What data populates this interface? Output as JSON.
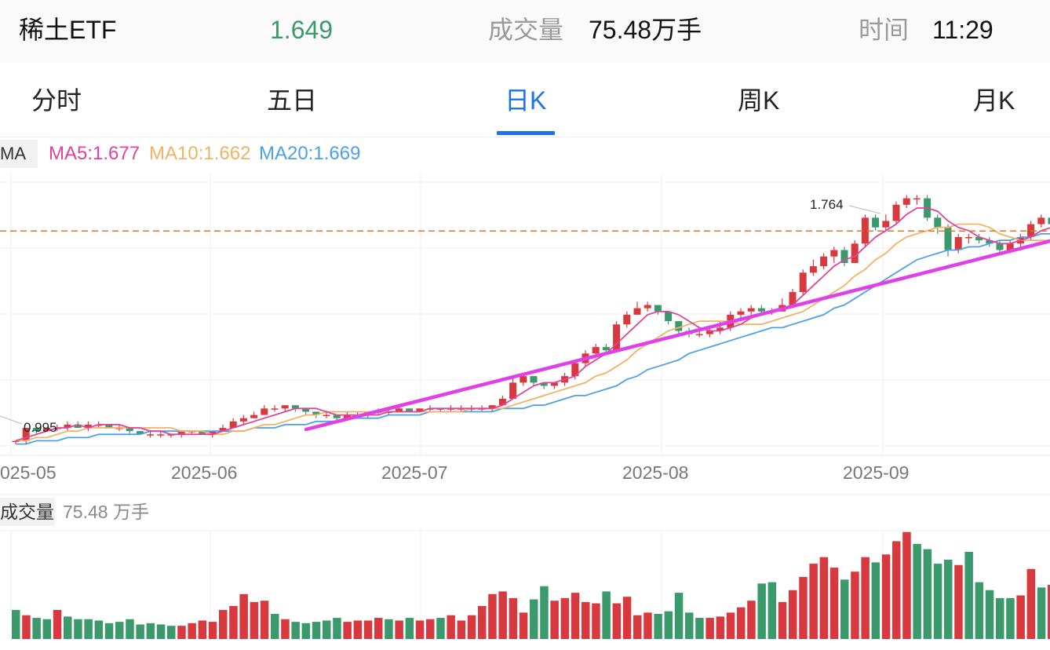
{
  "header": {
    "name": "稀土ETF",
    "price": "1.649",
    "volume_label": "成交量",
    "volume": "75.48万手",
    "time_label": "时间",
    "time": "11:29"
  },
  "tabs": [
    {
      "label": "分时",
      "active": false
    },
    {
      "label": "五日",
      "active": false
    },
    {
      "label": "日K",
      "active": true
    },
    {
      "label": "周K",
      "active": false
    },
    {
      "label": "月K",
      "active": false
    }
  ],
  "ma": {
    "tag": "MA",
    "ma5": "MA5:1.677",
    "ma10": "MA10:1.662",
    "ma20": "MA20:1.669"
  },
  "volume_panel": {
    "tag": "成交量",
    "value": "75.48 万手"
  },
  "colors": {
    "up": "#d8393f",
    "down": "#3a9a6c",
    "ma5": "#e0439a",
    "ma10": "#f0b266",
    "ma20": "#4da0e8",
    "trendline": "#e040e8",
    "price_line": "#e07820",
    "accent": "#1a73e8"
  },
  "chart_data": {
    "type": "candlestick",
    "x_tick_labels": [
      "2025-05",
      "2025-06",
      "2025-07",
      "2025-08",
      "2025-09"
    ],
    "annotations": {
      "high": "1.764",
      "low": "0.995"
    },
    "current_price": 1.649,
    "candles": [
      [
        1.0,
        1.0,
        0.99,
        1.0
      ],
      [
        1.0,
        1.04,
        0.99,
        1.04
      ],
      [
        1.04,
        1.03,
        1.02,
        1.04
      ],
      [
        1.03,
        1.04,
        1.03,
        1.04
      ],
      [
        1.04,
        1.04,
        1.03,
        1.05
      ],
      [
        1.04,
        1.05,
        1.03,
        1.06
      ],
      [
        1.05,
        1.04,
        1.04,
        1.06
      ],
      [
        1.04,
        1.05,
        1.03,
        1.06
      ],
      [
        1.05,
        1.05,
        1.04,
        1.06
      ],
      [
        1.05,
        1.04,
        1.04,
        1.05
      ],
      [
        1.04,
        1.04,
        1.03,
        1.05
      ],
      [
        1.04,
        1.03,
        1.02,
        1.04
      ],
      [
        1.03,
        1.02,
        1.02,
        1.03
      ],
      [
        1.02,
        1.02,
        1.01,
        1.03
      ],
      [
        1.02,
        1.02,
        1.01,
        1.03
      ],
      [
        1.02,
        1.02,
        1.01,
        1.02
      ],
      [
        1.02,
        1.03,
        1.01,
        1.03
      ],
      [
        1.03,
        1.03,
        1.02,
        1.03
      ],
      [
        1.03,
        1.02,
        1.02,
        1.03
      ],
      [
        1.02,
        1.03,
        1.01,
        1.03
      ],
      [
        1.03,
        1.04,
        1.03,
        1.05
      ],
      [
        1.04,
        1.06,
        1.04,
        1.07
      ],
      [
        1.06,
        1.07,
        1.05,
        1.08
      ],
      [
        1.07,
        1.08,
        1.07,
        1.09
      ],
      [
        1.08,
        1.1,
        1.08,
        1.11
      ],
      [
        1.1,
        1.1,
        1.09,
        1.11
      ],
      [
        1.1,
        1.11,
        1.09,
        1.11
      ],
      [
        1.11,
        1.1,
        1.09,
        1.11
      ],
      [
        1.1,
        1.09,
        1.08,
        1.1
      ],
      [
        1.09,
        1.08,
        1.07,
        1.09
      ],
      [
        1.08,
        1.08,
        1.07,
        1.09
      ],
      [
        1.08,
        1.07,
        1.06,
        1.08
      ],
      [
        1.07,
        1.08,
        1.07,
        1.09
      ],
      [
        1.08,
        1.08,
        1.07,
        1.09
      ],
      [
        1.08,
        1.09,
        1.07,
        1.09
      ],
      [
        1.09,
        1.09,
        1.08,
        1.1
      ],
      [
        1.09,
        1.09,
        1.08,
        1.1
      ],
      [
        1.09,
        1.1,
        1.09,
        1.11
      ],
      [
        1.1,
        1.09,
        1.09,
        1.1
      ],
      [
        1.09,
        1.1,
        1.09,
        1.1
      ],
      [
        1.1,
        1.1,
        1.09,
        1.11
      ],
      [
        1.1,
        1.1,
        1.09,
        1.1
      ],
      [
        1.1,
        1.1,
        1.09,
        1.11
      ],
      [
        1.1,
        1.1,
        1.09,
        1.11
      ],
      [
        1.1,
        1.1,
        1.09,
        1.11
      ],
      [
        1.1,
        1.1,
        1.09,
        1.11
      ],
      [
        1.1,
        1.11,
        1.09,
        1.11
      ],
      [
        1.11,
        1.13,
        1.11,
        1.14
      ],
      [
        1.13,
        1.18,
        1.13,
        1.2
      ],
      [
        1.18,
        1.2,
        1.17,
        1.21
      ],
      [
        1.2,
        1.18,
        1.17,
        1.2
      ],
      [
        1.18,
        1.17,
        1.16,
        1.18
      ],
      [
        1.17,
        1.18,
        1.16,
        1.18
      ],
      [
        1.18,
        1.2,
        1.17,
        1.21
      ],
      [
        1.2,
        1.24,
        1.19,
        1.25
      ],
      [
        1.24,
        1.27,
        1.23,
        1.28
      ],
      [
        1.27,
        1.29,
        1.26,
        1.3
      ],
      [
        1.29,
        1.28,
        1.27,
        1.3
      ],
      [
        1.28,
        1.36,
        1.28,
        1.37
      ],
      [
        1.36,
        1.39,
        1.35,
        1.4
      ],
      [
        1.39,
        1.41,
        1.39,
        1.43
      ],
      [
        1.41,
        1.42,
        1.4,
        1.43
      ],
      [
        1.42,
        1.4,
        1.39,
        1.42
      ],
      [
        1.4,
        1.37,
        1.36,
        1.4
      ],
      [
        1.37,
        1.34,
        1.33,
        1.37
      ],
      [
        1.34,
        1.33,
        1.32,
        1.35
      ],
      [
        1.33,
        1.33,
        1.32,
        1.34
      ],
      [
        1.33,
        1.34,
        1.32,
        1.35
      ],
      [
        1.34,
        1.35,
        1.33,
        1.37
      ],
      [
        1.35,
        1.39,
        1.34,
        1.4
      ],
      [
        1.39,
        1.4,
        1.38,
        1.41
      ],
      [
        1.4,
        1.41,
        1.39,
        1.42
      ],
      [
        1.41,
        1.4,
        1.39,
        1.42
      ],
      [
        1.4,
        1.4,
        1.39,
        1.41
      ],
      [
        1.4,
        1.42,
        1.4,
        1.44
      ],
      [
        1.42,
        1.46,
        1.42,
        1.47
      ],
      [
        1.46,
        1.52,
        1.45,
        1.53
      ],
      [
        1.52,
        1.54,
        1.51,
        1.56
      ],
      [
        1.54,
        1.57,
        1.53,
        1.58
      ],
      [
        1.57,
        1.59,
        1.55,
        1.6
      ],
      [
        1.59,
        1.55,
        1.54,
        1.6
      ],
      [
        1.55,
        1.61,
        1.55,
        1.62
      ],
      [
        1.61,
        1.69,
        1.6,
        1.7
      ],
      [
        1.69,
        1.66,
        1.65,
        1.7
      ],
      [
        1.66,
        1.68,
        1.65,
        1.7
      ],
      [
        1.68,
        1.73,
        1.67,
        1.74
      ],
      [
        1.73,
        1.75,
        1.72,
        1.76
      ],
      [
        1.75,
        1.75,
        1.73,
        1.76
      ],
      [
        1.75,
        1.69,
        1.68,
        1.76
      ],
      [
        1.69,
        1.66,
        1.64,
        1.7
      ],
      [
        1.66,
        1.59,
        1.57,
        1.67
      ],
      [
        1.59,
        1.63,
        1.58,
        1.64
      ],
      [
        1.63,
        1.63,
        1.61,
        1.64
      ],
      [
        1.63,
        1.62,
        1.61,
        1.64
      ],
      [
        1.62,
        1.61,
        1.6,
        1.63
      ],
      [
        1.61,
        1.59,
        1.58,
        1.62
      ],
      [
        1.59,
        1.61,
        1.58,
        1.62
      ],
      [
        1.61,
        1.63,
        1.6,
        1.64
      ],
      [
        1.63,
        1.67,
        1.62,
        1.68
      ],
      [
        1.67,
        1.69,
        1.66,
        1.7
      ],
      [
        1.69,
        1.67,
        1.66,
        1.7
      ],
      [
        1.67,
        1.68,
        1.66,
        1.69
      ],
      [
        1.68,
        1.69,
        1.66,
        1.7
      ],
      [
        1.69,
        1.67,
        1.65,
        1.7
      ],
      [
        1.67,
        1.65,
        1.64,
        1.68
      ]
    ],
    "ma5": [
      1.0,
      1.01,
      1.02,
      1.03,
      1.04,
      1.04,
      1.05,
      1.04,
      1.05,
      1.05,
      1.05,
      1.04,
      1.04,
      1.03,
      1.03,
      1.02,
      1.02,
      1.02,
      1.02,
      1.02,
      1.03,
      1.04,
      1.05,
      1.06,
      1.07,
      1.08,
      1.09,
      1.1,
      1.1,
      1.1,
      1.09,
      1.08,
      1.08,
      1.08,
      1.08,
      1.08,
      1.09,
      1.09,
      1.09,
      1.09,
      1.1,
      1.1,
      1.1,
      1.1,
      1.1,
      1.1,
      1.1,
      1.11,
      1.13,
      1.15,
      1.17,
      1.18,
      1.18,
      1.19,
      1.2,
      1.23,
      1.25,
      1.27,
      1.3,
      1.33,
      1.36,
      1.39,
      1.4,
      1.4,
      1.39,
      1.37,
      1.35,
      1.34,
      1.34,
      1.35,
      1.36,
      1.38,
      1.39,
      1.4,
      1.41,
      1.42,
      1.45,
      1.48,
      1.51,
      1.54,
      1.56,
      1.57,
      1.6,
      1.63,
      1.65,
      1.67,
      1.7,
      1.72,
      1.72,
      1.71,
      1.68,
      1.66,
      1.65,
      1.63,
      1.62,
      1.61,
      1.61,
      1.62,
      1.63,
      1.65,
      1.66,
      1.67,
      1.68,
      1.68,
      1.67
    ],
    "ma10": [
      1.0,
      1.0,
      1.01,
      1.01,
      1.02,
      1.03,
      1.03,
      1.04,
      1.04,
      1.04,
      1.04,
      1.04,
      1.04,
      1.04,
      1.04,
      1.04,
      1.03,
      1.03,
      1.03,
      1.02,
      1.02,
      1.03,
      1.03,
      1.04,
      1.05,
      1.05,
      1.06,
      1.07,
      1.08,
      1.08,
      1.09,
      1.09,
      1.09,
      1.09,
      1.09,
      1.09,
      1.09,
      1.09,
      1.09,
      1.09,
      1.09,
      1.09,
      1.09,
      1.09,
      1.1,
      1.1,
      1.1,
      1.1,
      1.11,
      1.12,
      1.13,
      1.14,
      1.15,
      1.16,
      1.17,
      1.18,
      1.2,
      1.21,
      1.23,
      1.25,
      1.28,
      1.3,
      1.32,
      1.34,
      1.35,
      1.36,
      1.37,
      1.37,
      1.37,
      1.37,
      1.36,
      1.36,
      1.36,
      1.37,
      1.38,
      1.39,
      1.4,
      1.42,
      1.44,
      1.46,
      1.48,
      1.51,
      1.53,
      1.56,
      1.58,
      1.61,
      1.63,
      1.64,
      1.65,
      1.66,
      1.66,
      1.67,
      1.67,
      1.67,
      1.66,
      1.64,
      1.63,
      1.62,
      1.62,
      1.62,
      1.62,
      1.63,
      1.64,
      1.65,
      1.66
    ],
    "ma20": [
      0.99,
      0.99,
      1.0,
      1.0,
      1.0,
      1.01,
      1.01,
      1.01,
      1.02,
      1.02,
      1.02,
      1.02,
      1.02,
      1.03,
      1.03,
      1.03,
      1.03,
      1.03,
      1.03,
      1.03,
      1.03,
      1.03,
      1.03,
      1.04,
      1.04,
      1.04,
      1.05,
      1.05,
      1.05,
      1.06,
      1.06,
      1.06,
      1.07,
      1.07,
      1.07,
      1.07,
      1.08,
      1.08,
      1.08,
      1.08,
      1.09,
      1.09,
      1.09,
      1.09,
      1.09,
      1.09,
      1.09,
      1.1,
      1.1,
      1.1,
      1.11,
      1.11,
      1.12,
      1.13,
      1.14,
      1.14,
      1.15,
      1.16,
      1.17,
      1.19,
      1.2,
      1.22,
      1.23,
      1.24,
      1.25,
      1.27,
      1.28,
      1.29,
      1.3,
      1.31,
      1.32,
      1.33,
      1.34,
      1.35,
      1.35,
      1.36,
      1.37,
      1.38,
      1.39,
      1.41,
      1.42,
      1.44,
      1.46,
      1.48,
      1.5,
      1.52,
      1.54,
      1.56,
      1.57,
      1.58,
      1.59,
      1.59,
      1.6,
      1.6,
      1.61,
      1.62,
      1.62,
      1.63,
      1.63,
      1.64,
      1.64,
      1.65,
      1.65,
      1.66,
      1.66
    ],
    "volumes": [
      22,
      18,
      16,
      15,
      22,
      17,
      15,
      15,
      14,
      12,
      13,
      15,
      11,
      12,
      11,
      10,
      10,
      12,
      14,
      13,
      22,
      25,
      34,
      28,
      29,
      19,
      15,
      13,
      12,
      13,
      14,
      16,
      13,
      14,
      14,
      16,
      15,
      14,
      16,
      14,
      15,
      16,
      18,
      14,
      18,
      25,
      34,
      36,
      31,
      20,
      30,
      40,
      29,
      31,
      35,
      28,
      27,
      36,
      27,
      32,
      18,
      20,
      19,
      21,
      35,
      20,
      16,
      16,
      17,
      20,
      24,
      29,
      42,
      43,
      28,
      37,
      47,
      57,
      62,
      54,
      45,
      51,
      62,
      58,
      64,
      74,
      81,
      72,
      68,
      57,
      60,
      56,
      66,
      43,
      37,
      31,
      31,
      33,
      53,
      39,
      41,
      39,
      33,
      43,
      16
    ],
    "volume_up": [
      false,
      true,
      false,
      false,
      true,
      false,
      false,
      false,
      false,
      false,
      false,
      false,
      false,
      false,
      false,
      false,
      true,
      true,
      true,
      true,
      true,
      true,
      true,
      true,
      true,
      false,
      true,
      false,
      false,
      false,
      false,
      false,
      true,
      true,
      true,
      true,
      false,
      true,
      false,
      true,
      true,
      false,
      true,
      true,
      true,
      true,
      true,
      true,
      true,
      true,
      false,
      false,
      true,
      true,
      true,
      true,
      true,
      false,
      true,
      true,
      true,
      true,
      false,
      false,
      false,
      false,
      false,
      true,
      true,
      true,
      true,
      true,
      false,
      false,
      true,
      true,
      true,
      true,
      true,
      true,
      false,
      true,
      true,
      false,
      true,
      true,
      true,
      false,
      false,
      false,
      false,
      true,
      false,
      false,
      false,
      false,
      false,
      true,
      true,
      false,
      true,
      false,
      true,
      false,
      false
    ],
    "trendline": [
      [
        1.12,
        0.97
      ],
      [
        1.12,
        1.68
      ]
    ]
  }
}
